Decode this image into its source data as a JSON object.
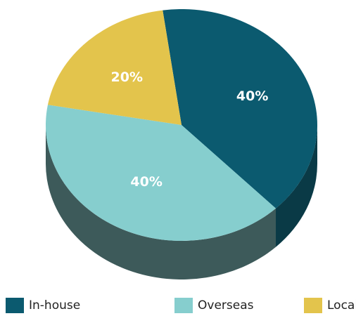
{
  "chart_data": {
    "type": "pie",
    "categories": [
      "In-house",
      "Overseas",
      "Local"
    ],
    "values": [
      40,
      40,
      20
    ],
    "value_labels": [
      "40%",
      "40%",
      "20%"
    ],
    "colors": [
      "#0b5a6f",
      "#86cece",
      "#e3c44c"
    ],
    "side_colors": [
      "#0a3a46",
      "#3d5a5a",
      "#5e5222"
    ],
    "legend": "bottom",
    "title": ""
  }
}
